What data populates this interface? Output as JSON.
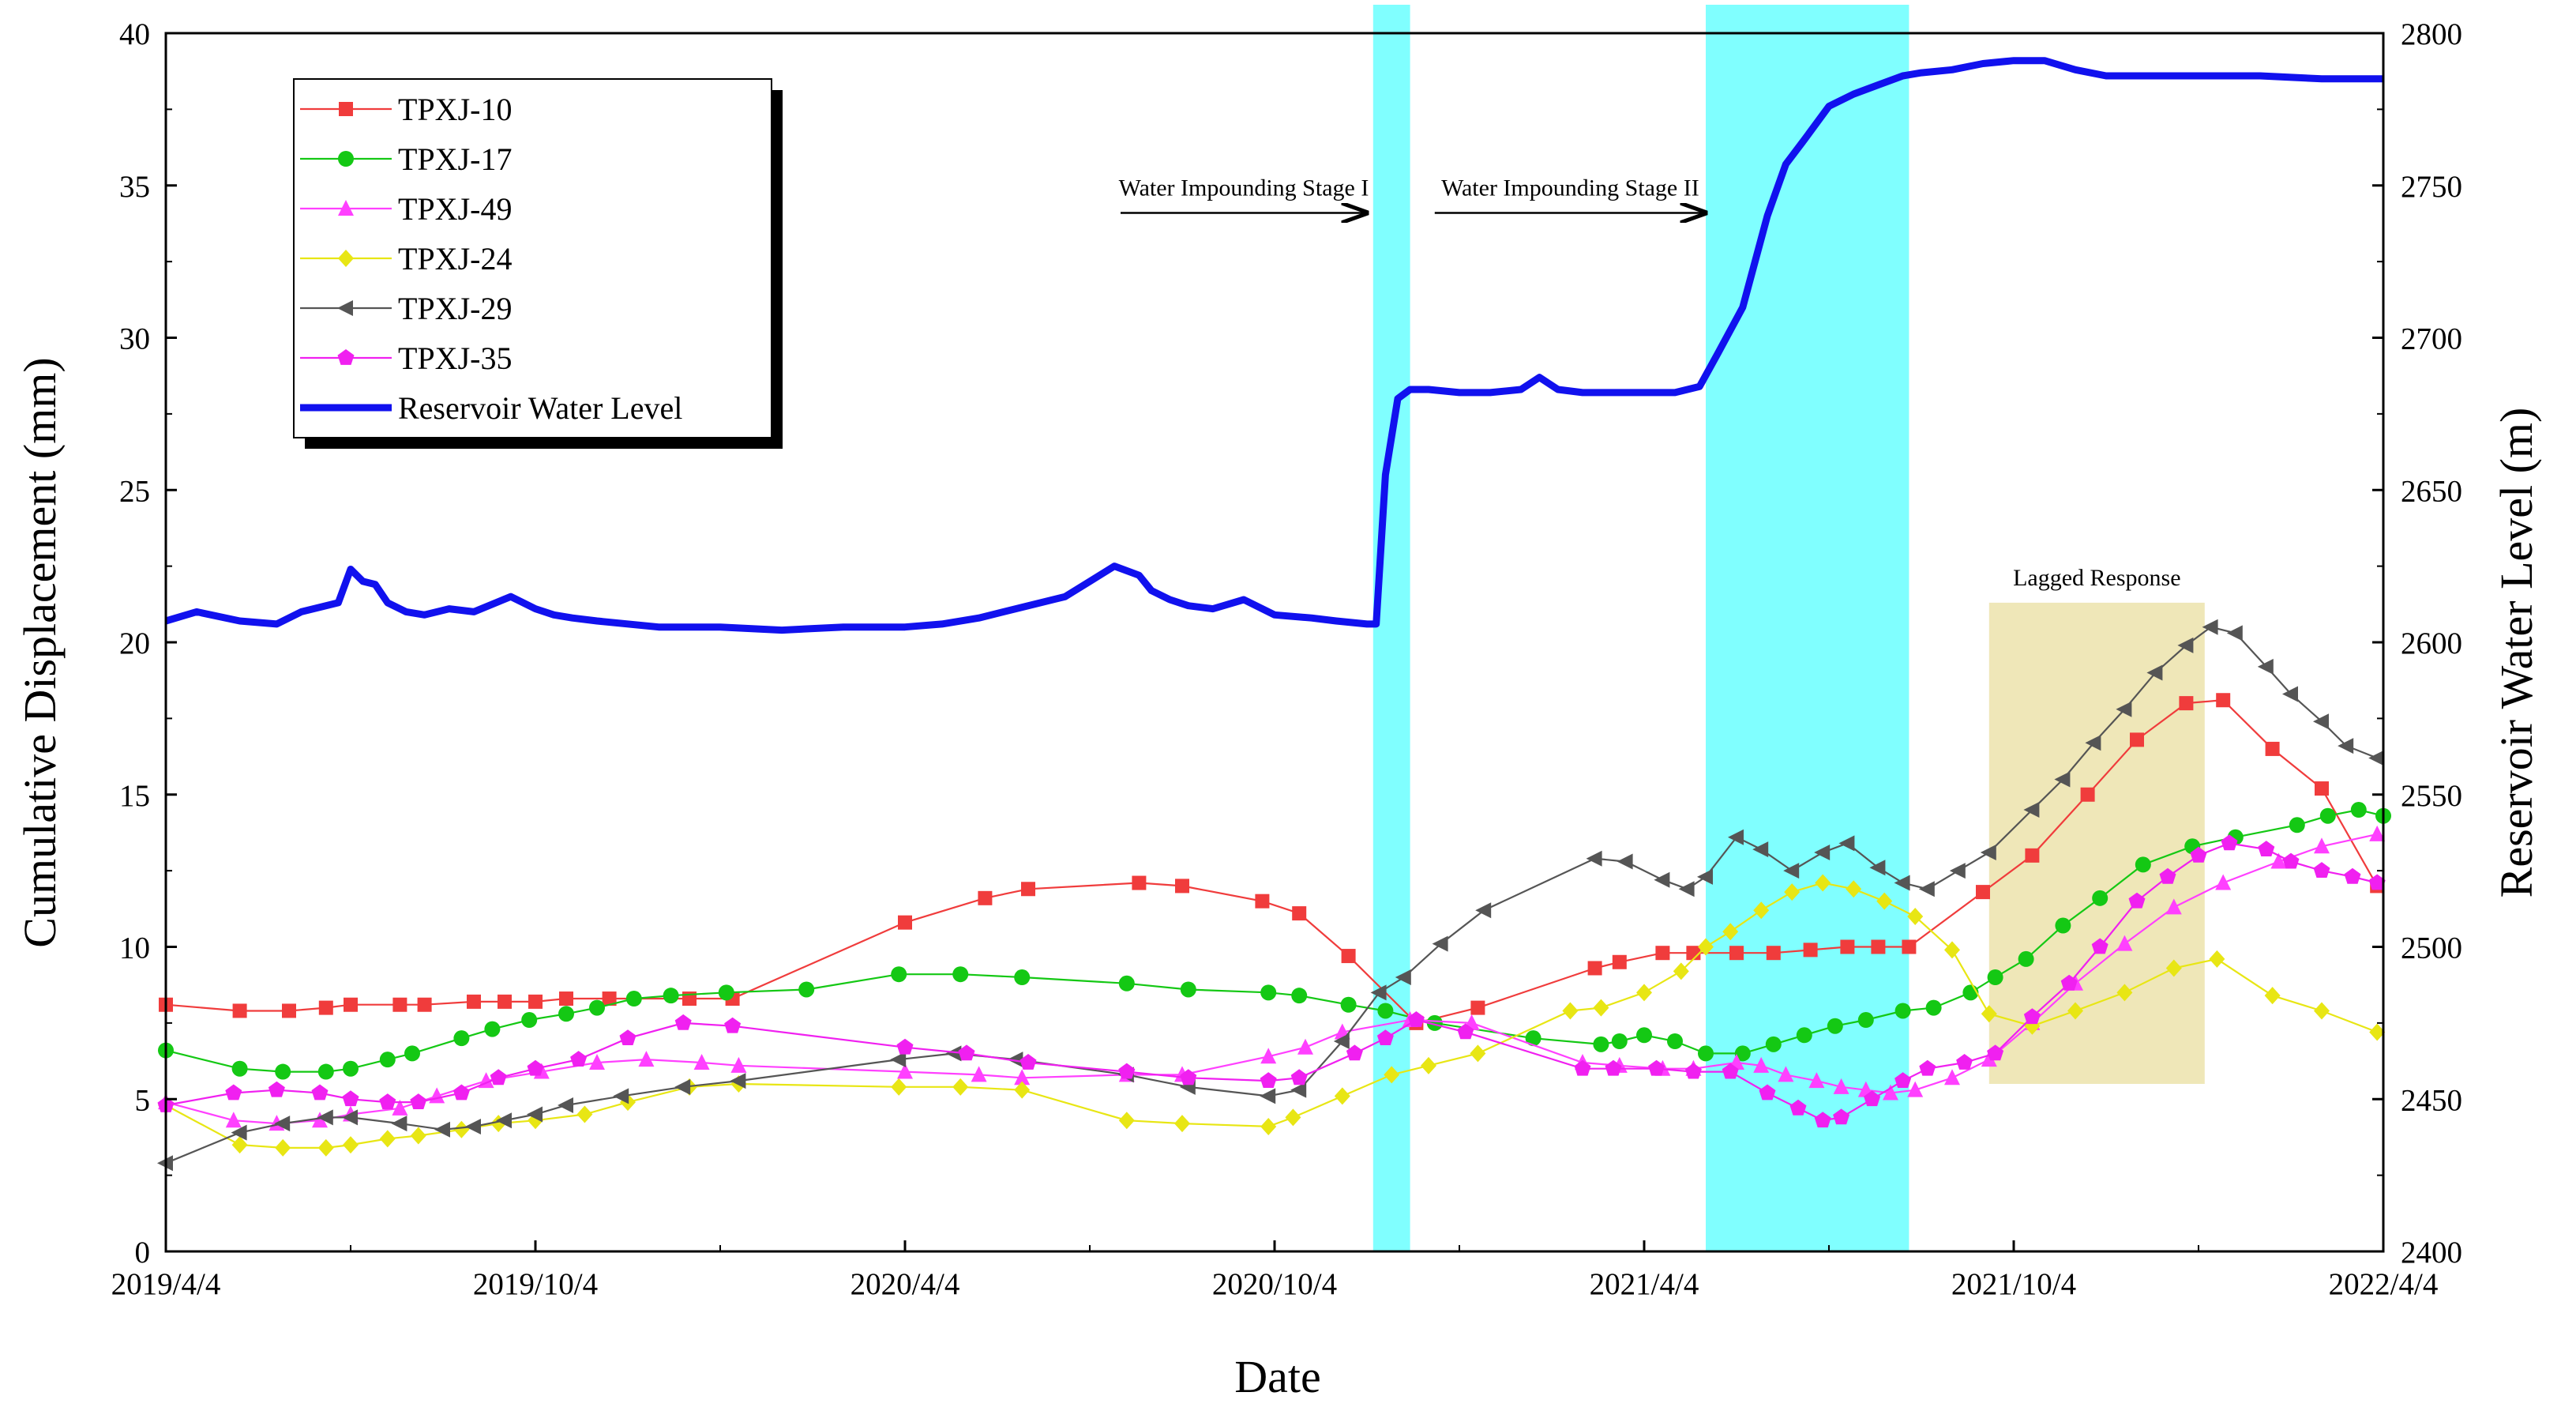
{
  "chart_data": {
    "type": "line",
    "xlabel": "Date",
    "ylabel": "Cumulative Displacement (mm)",
    "y2label": "Reservoir Water Level (m)",
    "x_ticks": [
      "2019/4/4",
      "2019/10/4",
      "2020/4/4",
      "2020/10/4",
      "2021/4/4",
      "2021/10/4",
      "2022/4/4"
    ],
    "ylim": [
      0,
      40
    ],
    "y_ticks": [
      0,
      5,
      10,
      15,
      20,
      25,
      30,
      35,
      40
    ],
    "y2lim": [
      2400,
      2800
    ],
    "y2_ticks": [
      2400,
      2450,
      2500,
      2550,
      2600,
      2650,
      2700,
      2750,
      2800
    ],
    "x_unit": "months since 2019/4/4",
    "bands": [
      {
        "name": "Water Impounding Stage I",
        "x0": 19.6,
        "x1": 20.2,
        "color": "#80ffff"
      },
      {
        "name": "Water Impounding Stage II",
        "x0": 25.0,
        "x1": 28.3,
        "color": "#80ffff"
      }
    ],
    "lag_band": {
      "label": "Lagged Response",
      "x0": 29.6,
      "x1": 33.1,
      "y0": 5.5,
      "y1": 21.3,
      "color": "#efe7b8"
    },
    "annotations": [
      {
        "text": "Water Impounding Stage I",
        "arrow_x0": 15.5,
        "arrow_x1": 19.5,
        "y": 34.1
      },
      {
        "text": "Water Impounding Stage II",
        "arrow_x0": 20.6,
        "arrow_x1": 25.0,
        "y": 34.1
      }
    ],
    "series": [
      {
        "name": "TPXJ-10",
        "color": "#f03c3c",
        "marker": "square",
        "x": [
          0,
          1.2,
          2,
          2.6,
          3,
          3.8,
          4.2,
          5,
          5.5,
          6,
          6.5,
          7.2,
          8.5,
          9.2,
          12,
          13.3,
          14,
          15.8,
          16.5,
          17.8,
          18.4,
          19.2,
          20.3,
          21.3,
          23.2,
          23.6,
          24.3,
          24.8,
          25.5,
          26.1,
          26.7,
          27.3,
          27.8,
          28.3,
          29.5,
          30.3,
          31.2,
          32.0,
          32.8,
          33.4,
          34.2,
          35.0,
          35.9
        ],
        "y": [
          8.1,
          7.9,
          7.9,
          8.0,
          8.1,
          8.1,
          8.1,
          8.2,
          8.2,
          8.2,
          8.3,
          8.3,
          8.3,
          8.3,
          10.8,
          11.6,
          11.9,
          12.1,
          12.0,
          11.5,
          11.1,
          9.7,
          7.5,
          8.0,
          9.3,
          9.5,
          9.8,
          9.8,
          9.8,
          9.8,
          9.9,
          10.0,
          10.0,
          10.0,
          11.8,
          13.0,
          15.0,
          16.8,
          18.0,
          18.1,
          16.5,
          15.2,
          12.0
        ]
      },
      {
        "name": "TPXJ-17",
        "color": "#14c814",
        "marker": "circle",
        "x": [
          0,
          1.2,
          1.9,
          2.6,
          3,
          3.6,
          4,
          4.8,
          5.3,
          5.9,
          6.5,
          7.0,
          7.6,
          8.2,
          9.1,
          10.4,
          11.9,
          12.9,
          13.9,
          15.6,
          16.6,
          17.9,
          18.4,
          19.2,
          19.8,
          20.6,
          22.2,
          23.3,
          23.6,
          24.0,
          24.5,
          25.0,
          25.6,
          26.1,
          26.6,
          27.1,
          27.6,
          28.2,
          28.7,
          29.3,
          29.7,
          30.2,
          30.8,
          31.4,
          32.1,
          32.9,
          33.6,
          34.6,
          35.1,
          35.6,
          36.0
        ],
        "y": [
          6.6,
          6.0,
          5.9,
          5.9,
          6.0,
          6.3,
          6.5,
          7.0,
          7.3,
          7.6,
          7.8,
          8.0,
          8.3,
          8.4,
          8.5,
          8.6,
          9.1,
          9.1,
          9.0,
          8.8,
          8.6,
          8.5,
          8.4,
          8.1,
          7.9,
          7.5,
          7.0,
          6.8,
          6.9,
          7.1,
          6.9,
          6.5,
          6.5,
          6.8,
          7.1,
          7.4,
          7.6,
          7.9,
          8.0,
          8.5,
          9.0,
          9.6,
          10.7,
          11.6,
          12.7,
          13.3,
          13.6,
          14.0,
          14.3,
          14.5,
          14.3
        ]
      },
      {
        "name": "TPXJ-49",
        "color": "#ff40ff",
        "marker": "triangle",
        "x": [
          0,
          1.1,
          1.8,
          2.5,
          3,
          3.8,
          4.4,
          5.2,
          6.1,
          7.0,
          7.8,
          8.7,
          9.3,
          12.0,
          13.2,
          13.9,
          15.6,
          16.5,
          17.9,
          18.5,
          19.1,
          20.2,
          21.2,
          23.0,
          23.6,
          24.3,
          24.8,
          25.5,
          25.9,
          26.3,
          26.8,
          27.2,
          27.6,
          28.0,
          28.4,
          29.0,
          29.6,
          30.3,
          31.0,
          31.8,
          32.6,
          33.4,
          34.3,
          35.0,
          35.9
        ],
        "y": [
          4.9,
          4.3,
          4.2,
          4.3,
          4.5,
          4.7,
          5.1,
          5.6,
          5.9,
          6.2,
          6.3,
          6.2,
          6.1,
          5.9,
          5.8,
          5.7,
          5.8,
          5.8,
          6.4,
          6.7,
          7.2,
          7.6,
          7.5,
          6.2,
          6.1,
          6.0,
          6.0,
          6.2,
          6.1,
          5.8,
          5.6,
          5.4,
          5.3,
          5.2,
          5.3,
          5.7,
          6.3,
          7.5,
          8.8,
          10.1,
          11.3,
          12.1,
          12.8,
          13.3,
          13.7
        ]
      },
      {
        "name": "TPXJ-24",
        "color": "#e8e614",
        "marker": "diamond",
        "x": [
          0,
          1.2,
          1.9,
          2.6,
          3,
          3.6,
          4.1,
          4.8,
          5.4,
          6.0,
          6.8,
          7.5,
          8.5,
          9.3,
          11.9,
          12.9,
          13.9,
          15.6,
          16.5,
          17.9,
          18.3,
          19.1,
          19.9,
          20.5,
          21.3,
          22.8,
          23.3,
          24.0,
          24.6,
          25.0,
          25.4,
          25.9,
          26.4,
          26.9,
          27.4,
          27.9,
          28.4,
          29.0,
          29.6,
          30.3,
          31.0,
          31.8,
          32.6,
          33.3,
          34.2,
          35.0,
          35.9
        ],
        "y": [
          4.8,
          3.5,
          3.4,
          3.4,
          3.5,
          3.7,
          3.8,
          4.0,
          4.2,
          4.3,
          4.5,
          4.9,
          5.4,
          5.5,
          5.4,
          5.4,
          5.3,
          4.3,
          4.2,
          4.1,
          4.4,
          5.1,
          5.8,
          6.1,
          6.5,
          7.9,
          8.0,
          8.5,
          9.2,
          10.0,
          10.5,
          11.2,
          11.8,
          12.1,
          11.9,
          11.5,
          11.0,
          9.9,
          7.8,
          7.4,
          7.9,
          8.5,
          9.3,
          9.6,
          8.4,
          7.9,
          7.2
        ]
      },
      {
        "name": "TPXJ-29",
        "color": "#555555",
        "marker": "triangle-left",
        "x": [
          0,
          1.2,
          1.9,
          2.6,
          3,
          3.8,
          4.5,
          5.0,
          5.5,
          6.0,
          6.5,
          7.4,
          8.4,
          9.3,
          11.9,
          12.8,
          13.8,
          15.6,
          16.6,
          17.9,
          18.4,
          19.1,
          19.7,
          20.1,
          20.7,
          21.4,
          23.2,
          23.7,
          24.3,
          24.7,
          25.0,
          25.5,
          25.9,
          26.4,
          26.9,
          27.3,
          27.8,
          28.2,
          28.6,
          29.1,
          29.6,
          30.3,
          30.8,
          31.3,
          31.8,
          32.3,
          32.8,
          33.2,
          33.6,
          34.1,
          34.5,
          35.0,
          35.4,
          35.9
        ],
        "y": [
          2.9,
          3.9,
          4.2,
          4.4,
          4.4,
          4.2,
          4.0,
          4.1,
          4.3,
          4.5,
          4.8,
          5.1,
          5.4,
          5.6,
          6.3,
          6.5,
          6.3,
          5.8,
          5.4,
          5.1,
          5.3,
          6.9,
          8.5,
          9.0,
          10.1,
          11.2,
          12.9,
          12.8,
          12.2,
          11.9,
          12.3,
          13.6,
          13.2,
          12.5,
          13.1,
          13.4,
          12.6,
          12.1,
          11.9,
          12.5,
          13.1,
          14.5,
          15.5,
          16.7,
          17.8,
          19.0,
          19.9,
          20.5,
          20.3,
          19.2,
          18.3,
          17.4,
          16.6,
          16.2
        ]
      },
      {
        "name": "TPXJ-35",
        "color": "#f020f0",
        "marker": "pentagon",
        "x": [
          0,
          1.1,
          1.8,
          2.5,
          3,
          3.6,
          4.1,
          4.8,
          5.4,
          6.0,
          6.7,
          7.5,
          8.4,
          9.2,
          12.0,
          13.0,
          14.0,
          15.6,
          16.6,
          17.9,
          18.4,
          19.3,
          19.8,
          20.3,
          21.1,
          23.0,
          23.5,
          24.2,
          24.8,
          25.4,
          26.0,
          26.5,
          26.9,
          27.2,
          27.7,
          28.2,
          28.6,
          29.2,
          29.7,
          30.3,
          30.9,
          31.4,
          32.0,
          32.5,
          33.0,
          33.5,
          34.1,
          34.5,
          35.0,
          35.5,
          35.9
        ],
        "y": [
          4.8,
          5.2,
          5.3,
          5.2,
          5.0,
          4.9,
          4.9,
          5.2,
          5.7,
          6.0,
          6.3,
          7.0,
          7.5,
          7.4,
          6.7,
          6.5,
          6.2,
          5.9,
          5.7,
          5.6,
          5.7,
          6.5,
          7.0,
          7.6,
          7.2,
          6.0,
          6.0,
          6.0,
          5.9,
          5.9,
          5.2,
          4.7,
          4.3,
          4.4,
          5.0,
          5.6,
          6.0,
          6.2,
          6.5,
          7.7,
          8.8,
          10.0,
          11.5,
          12.3,
          13.0,
          13.4,
          13.2,
          12.8,
          12.5,
          12.3,
          12.1
        ]
      }
    ],
    "water_level": {
      "name": "Reservoir Water Level",
      "color": "#1111ee",
      "x": [
        0,
        0.5,
        1.2,
        1.8,
        2.2,
        2.8,
        3.0,
        3.2,
        3.4,
        3.6,
        3.9,
        4.2,
        4.6,
        5.0,
        5.6,
        6.0,
        6.3,
        6.6,
        7.0,
        8.0,
        9.0,
        10.0,
        11.0,
        12.0,
        12.6,
        13.2,
        14.0,
        14.6,
        15.0,
        15.4,
        15.8,
        16.0,
        16.3,
        16.6,
        17.0,
        17.5,
        18.0,
        18.6,
        19.0,
        19.5,
        19.65,
        19.8,
        20.0,
        20.2,
        20.5,
        21.0,
        21.5,
        22.0,
        22.3,
        22.6,
        23.0,
        24.0,
        24.5,
        24.9,
        25.2,
        25.6,
        26.0,
        26.3,
        26.6,
        27.0,
        27.4,
        27.8,
        28.2,
        28.5,
        29.0,
        29.5,
        30.0,
        30.5,
        31.0,
        31.5,
        32.0,
        33.0,
        34.0,
        35.0,
        36.0
      ],
      "y": [
        2607,
        2610,
        2607,
        2606,
        2610,
        2613,
        2624,
        2620,
        2619,
        2613,
        2610,
        2609,
        2611,
        2610,
        2615,
        2611,
        2609,
        2608,
        2607,
        2605,
        2605,
        2604,
        2605,
        2605,
        2606,
        2608,
        2612,
        2615,
        2620,
        2625,
        2622,
        2617,
        2614,
        2612,
        2611,
        2614,
        2609,
        2608,
        2607,
        2606,
        2606,
        2655,
        2680,
        2683,
        2683,
        2682,
        2682,
        2683,
        2687,
        2683,
        2682,
        2682,
        2682,
        2684,
        2695,
        2710,
        2740,
        2757,
        2765,
        2776,
        2780,
        2783,
        2786,
        2787,
        2788,
        2790,
        2791,
        2791,
        2788,
        2786,
        2786,
        2786,
        2786,
        2785,
        2785
      ]
    }
  }
}
